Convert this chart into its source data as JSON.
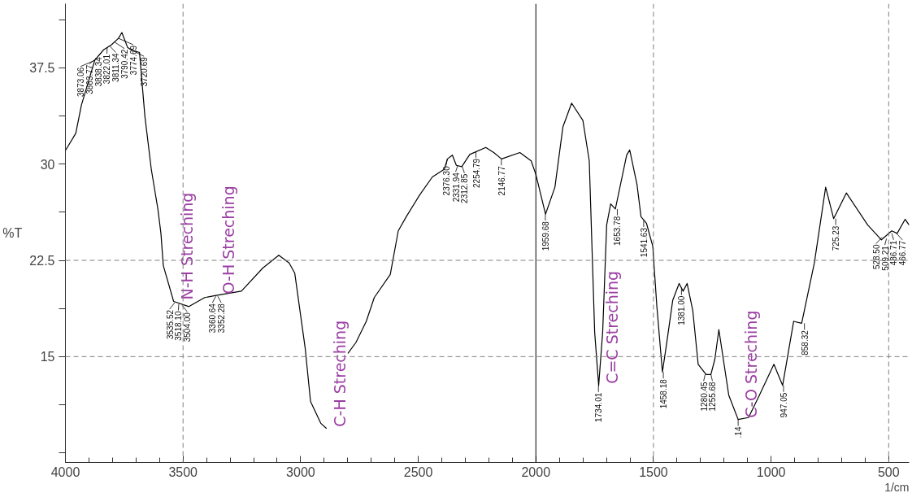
{
  "chart_data": {
    "type": "line",
    "xlabel": "1/cm",
    "ylabel": "%T",
    "xlim": [
      4000,
      413
    ],
    "ylim": [
      6.75,
      42.5
    ],
    "xticks": [
      4000,
      3500,
      3000,
      2500,
      2000,
      1500,
      1000,
      500
    ],
    "yticks": [
      37.5,
      30,
      22.5,
      15
    ],
    "grid": false,
    "marker": "none",
    "line_style": "solid",
    "x": [
      4000,
      3956,
      3932,
      3875,
      3838,
      3804,
      3774.69,
      3760,
      3736,
      3720.69,
      3685,
      3675,
      3662,
      3635,
      3607,
      3594,
      3584,
      3540,
      3475,
      3408,
      3364,
      3252,
      3161,
      3093,
      3049,
      3025,
      2981,
      2958,
      2914,
      2890,
      2850,
      2799,
      2765,
      2721,
      2687,
      2619,
      2585,
      2551,
      2494,
      2440,
      2389,
      2376,
      2355,
      2338,
      2315,
      2281,
      2213,
      2179,
      2146,
      2068,
      2020,
      2000,
      1959,
      1919,
      1885,
      1848,
      1800,
      1773,
      1750,
      1733,
      1716,
      1699,
      1682,
      1662,
      1614,
      1601,
      1570,
      1553,
      1530,
      1503,
      1486,
      1462,
      1445,
      1418,
      1391,
      1374,
      1357,
      1333,
      1310,
      1276,
      1256,
      1239,
      1222,
      1180,
      1140,
      1096,
      1052,
      988,
      951,
      904,
      870,
      816,
      768,
      734,
      680,
      589,
      531,
      487,
      464,
      430,
      413
    ],
    "series": [
      {
        "color": "#000000",
        "values": [
          31.06,
          32.4,
          34.6,
          38.1,
          38.9,
          39.3,
          39.8,
          40.25,
          39.1,
          38.9,
          38.7,
          36.5,
          33.7,
          29.6,
          26.5,
          24.6,
          22.1,
          19.3,
          18.9,
          19.6,
          19.75,
          20.1,
          21.9,
          22.9,
          22.3,
          21.5,
          15.7,
          11.5,
          9.8,
          9.4,
          null,
          15.25,
          16.1,
          17.75,
          19.6,
          21.4,
          24.8,
          25.9,
          27.6,
          29.0,
          29.6,
          30.4,
          30.7,
          29.9,
          29.8,
          30.75,
          31.3,
          30.9,
          30.4,
          30.9,
          30.25,
          29.2,
          26.1,
          28.2,
          32.9,
          34.75,
          33.4,
          30.25,
          16.9,
          12.75,
          16.9,
          25.25,
          26.9,
          26.5,
          30.7,
          31.1,
          28.4,
          25.9,
          25.4,
          23.6,
          19.0,
          13.8,
          15.9,
          19.4,
          20.7,
          20.1,
          20.7,
          18.6,
          14.4,
          13.6,
          13.6,
          14.8,
          17.1,
          12.0,
          10.1,
          10.25,
          11.9,
          14.4,
          12.75,
          17.75,
          17.6,
          22.3,
          28.2,
          25.75,
          27.75,
          25.25,
          24.1,
          24.8,
          24.6,
          25.7,
          25.25
        ]
      }
    ],
    "ref_lines": [
      {
        "axis": "x",
        "value": 3500,
        "line_style": "dashed",
        "color": "#808080"
      },
      {
        "axis": "x",
        "value": 1500,
        "line_style": "dashed",
        "color": "#808080"
      },
      {
        "axis": "x",
        "value": 500,
        "line_style": "dashed",
        "color": "#808080"
      },
      {
        "axis": "x",
        "value": 2000,
        "line_style": "solid",
        "color": "#000000"
      },
      {
        "axis": "y",
        "value": 22.5,
        "line_style": "dashed",
        "color": "#808080"
      },
      {
        "axis": "y",
        "value": 15,
        "line_style": "dashed",
        "color": "#808080"
      }
    ],
    "annotations": [
      {
        "text": "3873.06",
        "x": 3873.06,
        "y": 38.1
      },
      {
        "text": "3863.77",
        "x": 3863.77,
        "y": 38.3
      },
      {
        "text": "3838.34",
        "x": 3838.34,
        "y": 38.9
      },
      {
        "text": "3822.01",
        "x": 3822.01,
        "y": 39.1
      },
      {
        "text": "3811.34",
        "x": 3811.34,
        "y": 39.2
      },
      {
        "text": "3790.42",
        "x": 3790.42,
        "y": 39.5
      },
      {
        "text": "3774.69",
        "x": 3774.69,
        "y": 39.8
      },
      {
        "text": "3720.69",
        "x": 3720.69,
        "y": 38.9
      },
      {
        "text": "3535.52",
        "x": 3535.52,
        "y": 19.2
      },
      {
        "text": "3518.10",
        "x": 3518.1,
        "y": 19.1
      },
      {
        "text": "3504.00",
        "x": 3504.0,
        "y": 19.0
      },
      {
        "text": "3360.64",
        "x": 3360.64,
        "y": 19.7
      },
      {
        "text": "3352.28",
        "x": 3352.28,
        "y": 19.7
      },
      {
        "text": "2376.30",
        "x": 2376.3,
        "y": 30.4
      },
      {
        "text": "2331.94",
        "x": 2331.94,
        "y": 29.9
      },
      {
        "text": "2312.85",
        "x": 2312.85,
        "y": 29.8
      },
      {
        "text": "2254.79",
        "x": 2254.79,
        "y": 31.0
      },
      {
        "text": "2146.77",
        "x": 2146.77,
        "y": 30.4
      },
      {
        "text": "1959.68",
        "x": 1959.68,
        "y": 26.1
      },
      {
        "text": "1734.01",
        "x": 1734.01,
        "y": 12.75
      },
      {
        "text": "1653.78",
        "x": 1653.78,
        "y": 26.5
      },
      {
        "text": "1541.63",
        "x": 1541.63,
        "y": 25.6
      },
      {
        "text": "1458.18",
        "x": 1458.18,
        "y": 13.8
      },
      {
        "text": "1381.00",
        "x": 1381.0,
        "y": 20.3
      },
      {
        "text": "1280.45",
        "x": 1280.45,
        "y": 13.6
      },
      {
        "text": "1255.68",
        "x": 1255.68,
        "y": 13.6
      },
      {
        "text": ".14",
        "x": 1140,
        "y": 10.1
      },
      {
        "text": "947.05",
        "x": 947.05,
        "y": 12.75
      },
      {
        "text": "858.32",
        "x": 858.32,
        "y": 17.6
      },
      {
        "text": "725.23",
        "x": 725.23,
        "y": 25.75
      },
      {
        "text": "528.50",
        "x": 528.5,
        "y": 24.3
      },
      {
        "text": "509.21",
        "x": 509.21,
        "y": 24.2
      },
      {
        "text": "486.71",
        "x": 486.71,
        "y": 24.6
      },
      {
        "text": "466.77",
        "x": 466.77,
        "y": 24.6
      },
      {
        "text": "N-H Streching",
        "x": 3540,
        "y": 19.3
      },
      {
        "text": "O-H Streching",
        "x": 3364,
        "y": 19.75
      },
      {
        "text": "C-H Streching",
        "x": 2890,
        "y": 9.4
      },
      {
        "text": "C=C Streching",
        "x": 1733,
        "y": 12.75
      },
      {
        "text": "C-O Streching",
        "x": 1140,
        "y": 10.1
      }
    ]
  }
}
